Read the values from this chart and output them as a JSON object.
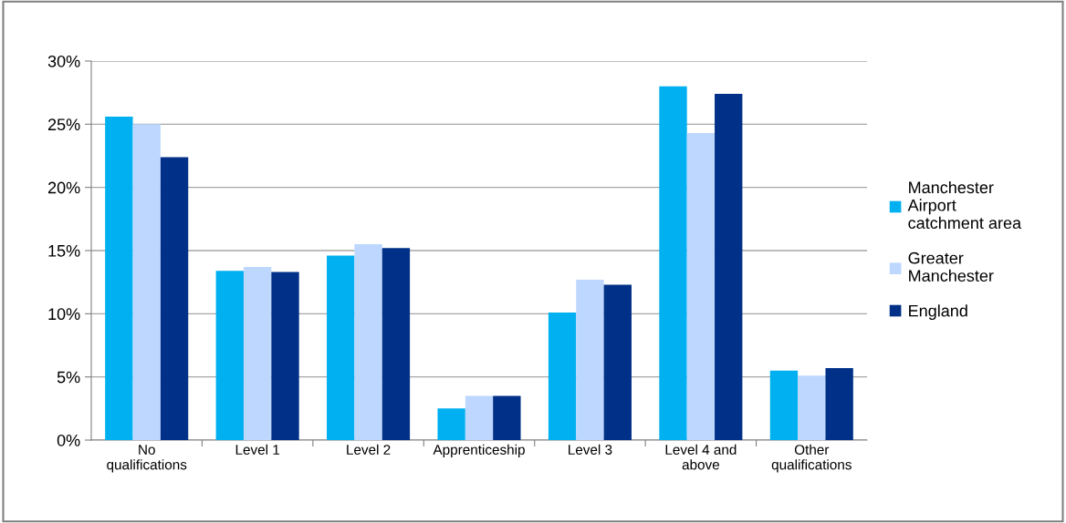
{
  "chart_data": {
    "type": "bar",
    "categories": [
      "No\nqualifications",
      "Level 1",
      "Level 2",
      "Apprenticeship",
      "Level 3",
      "Level 4 and\nabove",
      "Other\nqualifications"
    ],
    "series": [
      {
        "name": "Manchester\nAirport\ncatchment area",
        "color": "#00b0f0",
        "values": [
          25.6,
          13.4,
          14.6,
          2.5,
          10.1,
          28.0,
          5.5
        ]
      },
      {
        "name": "Greater\nManchester",
        "color": "#bdd7ff",
        "values": [
          25.0,
          13.7,
          15.5,
          3.5,
          12.7,
          24.3,
          5.1
        ]
      },
      {
        "name": "England",
        "color": "#003087",
        "values": [
          22.4,
          13.3,
          15.2,
          3.5,
          12.3,
          27.4,
          5.7
        ]
      }
    ],
    "ylim": [
      0,
      30
    ],
    "yticks": [
      {
        "value": 0,
        "label": "0%"
      },
      {
        "value": 5,
        "label": "5%"
      },
      {
        "value": 10,
        "label": "10%"
      },
      {
        "value": 15,
        "label": "15%"
      },
      {
        "value": 20,
        "label": "20%"
      },
      {
        "value": 25,
        "label": "25%"
      },
      {
        "value": 30,
        "label": "30%"
      }
    ],
    "grid": "y",
    "legend": "right"
  }
}
